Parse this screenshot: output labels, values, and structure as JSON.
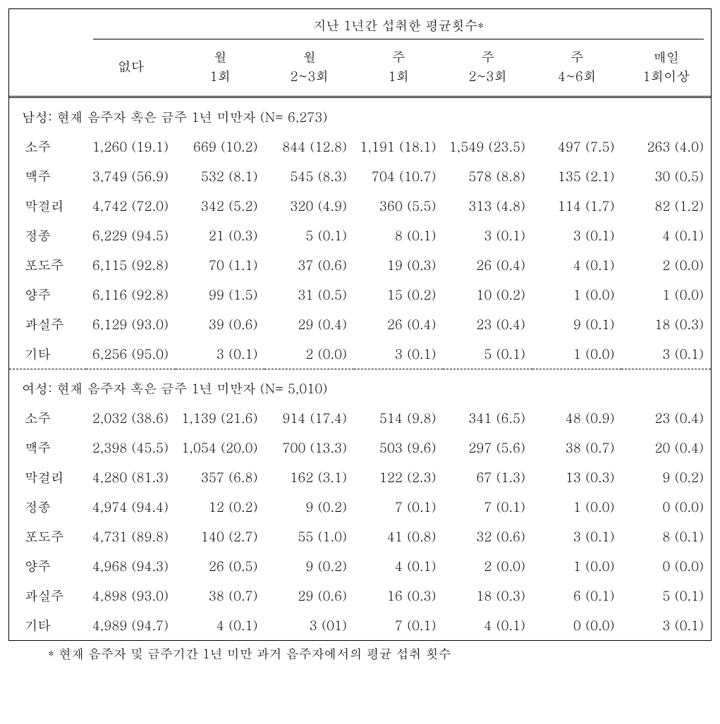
{
  "title": "지난 1년간 섭취한 평균횟수*",
  "columns": [
    "없다",
    "월\n1회",
    "월\n2~3회",
    "주\n1회",
    "주\n2~3회",
    "주\n4~6회",
    "매일\n1회이상"
  ],
  "sections": [
    {
      "heading": "남성: 현재 음주자 혹은 금주 1년 미만자 (N= 6,273)",
      "rows": [
        {
          "label": "소주",
          "cells": [
            "1,260 (19.1)",
            "669 (10.2)",
            "844 (12.8)",
            "1,191 (18.1)",
            "1,549 (23.5)",
            "497 (7.5)",
            "263 (4.0)"
          ]
        },
        {
          "label": "맥주",
          "cells": [
            "3,749 (56.9)",
            "532 (8.1)",
            "545 (8.3)",
            "704 (10.7)",
            "578 (8.8)",
            "135 (2.1)",
            "30 (0.5)"
          ]
        },
        {
          "label": "막걸리",
          "cells": [
            "4,742 (72.0)",
            "342 (5.2)",
            "320 (4.9)",
            "360 (5.5)",
            "313 (4.8)",
            "114 (1.7)",
            "82 (1.2)"
          ]
        },
        {
          "label": "정종",
          "cells": [
            "6,229 (94.5)",
            "21 (0.3)",
            "5 (0.1)",
            "8 (0.1)",
            "3 (0.1)",
            "3 (0.1)",
            "4 (0.1)"
          ]
        },
        {
          "label": "포도주",
          "cells": [
            "6,115 (92.8)",
            "70 (1.1)",
            "37 (0.6)",
            "19 (0.3)",
            "26 (0.4)",
            "4 (0.1)",
            "2 (0.0)"
          ]
        },
        {
          "label": "양주",
          "cells": [
            "6,116 (92.8)",
            "99 (1.5)",
            "31 (0.5)",
            "15 (0.2)",
            "10 (0.2)",
            "1 (0.0)",
            "1 (0.0)"
          ]
        },
        {
          "label": "과실주",
          "cells": [
            "6,129 (93.0)",
            "39 (0.6)",
            "29 (0.4)",
            "26 (0.4)",
            "23 (0.4)",
            "9 (0.1)",
            "18 (0.3)"
          ]
        },
        {
          "label": "기타",
          "cells": [
            "6,256 (95.0)",
            "3 (0.1)",
            "2 (0.0)",
            "3 (0.1)",
            "5 (0.1)",
            "1 (0.0)",
            "3 (0.1)"
          ]
        }
      ]
    },
    {
      "heading": "여성: 현재 음주자 혹은 금주 1년 미만자 (N= 5,010)",
      "rows": [
        {
          "label": "소주",
          "cells": [
            "2,032 (38.6)",
            "1,139 (21.6)",
            "914 (17.4)",
            "514 (9.8)",
            "341 (6.5)",
            "48 (0.9)",
            "23 (0.4)"
          ]
        },
        {
          "label": "맥주",
          "cells": [
            "2,398 (45.5)",
            "1,054 (20.0)",
            "700 (13.3)",
            "503 (9.6)",
            "297 (5.6)",
            "38 (0.7)",
            "20 (0.4)"
          ]
        },
        {
          "label": "막걸리",
          "cells": [
            "4,280 (81.3)",
            "357 (6.8)",
            "162 (3.1)",
            "122 (2.3)",
            "67 (1.3)",
            "13 (0.3)",
            "9 (0.2)"
          ]
        },
        {
          "label": "정종",
          "cells": [
            "4,974 (94.4)",
            "12 (0.2)",
            "9 (0.2)",
            "7 (0.1)",
            "7 (0.1)",
            "1 (0.0)",
            "0 (0.0)"
          ]
        },
        {
          "label": "포도주",
          "cells": [
            "4,731 (89.8)",
            "140 (2.7)",
            "55 (1.0)",
            "41 (0.8)",
            "32 (0.6)",
            "3 (0.1)",
            "8 (0.1)"
          ]
        },
        {
          "label": "양주",
          "cells": [
            "4,968 (94.3)",
            "26 (0.5)",
            "9 (0.2)",
            "4 (0.1)",
            "2 (0.0)",
            "1 (0.0)",
            "0 (0.0)"
          ]
        },
        {
          "label": "과실주",
          "cells": [
            "4,898 (93.0)",
            "38 (0.7)",
            "29 (0.6)",
            "16 (0.3)",
            "18 (0.3)",
            "6 (0.1)",
            "5 (0.1)"
          ]
        },
        {
          "label": "기타",
          "cells": [
            "4,989 (94.7)",
            "4 (0.1)",
            "3 (01)",
            "7 (0.1)",
            "4 (0.1)",
            "0 (0.0)",
            "3 (0.1)"
          ]
        }
      ]
    }
  ],
  "footnote": "* 현재 음주자 및 금주기간 1년 미만 과거 음주자에서의 평균 섭취 횟수",
  "styling": {
    "font_family": "Batang, serif",
    "font_size_pt": 14,
    "text_color": "#000000",
    "background": "#ffffff",
    "border_color": "#000000",
    "header_divider": "double",
    "section_divider": "dashed"
  }
}
